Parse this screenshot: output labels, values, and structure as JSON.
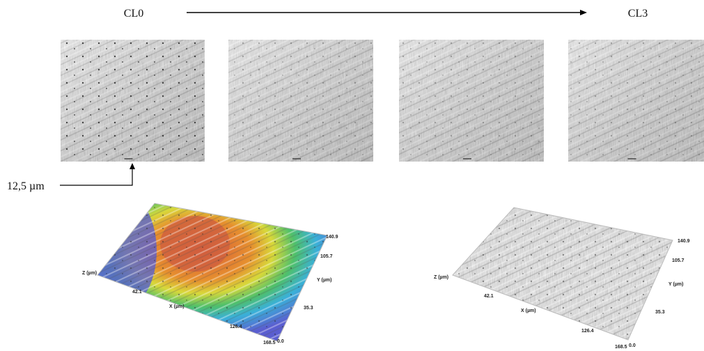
{
  "header": {
    "left_label": "CL0",
    "right_label": "CL3"
  },
  "scale_bar": {
    "label": "12,5 µm"
  },
  "plots": [
    {
      "z_axis": "Z (µm)",
      "x_axis": "X (µm)",
      "y_axis": "Y (µm)",
      "x_ticks": [
        "42.1",
        "126.4",
        "168.5"
      ],
      "y_ticks": [
        "0.0",
        "35.3",
        "105.7",
        "140.9"
      ]
    },
    {
      "z_axis": "Z (µm)",
      "x_axis": "X (µm)",
      "y_axis": "Y (µm)",
      "x_ticks": [
        "42.1",
        "126.4",
        "168.5"
      ],
      "y_ticks": [
        "0.0",
        "35.3",
        "105.7",
        "140.9"
      ]
    }
  ]
}
